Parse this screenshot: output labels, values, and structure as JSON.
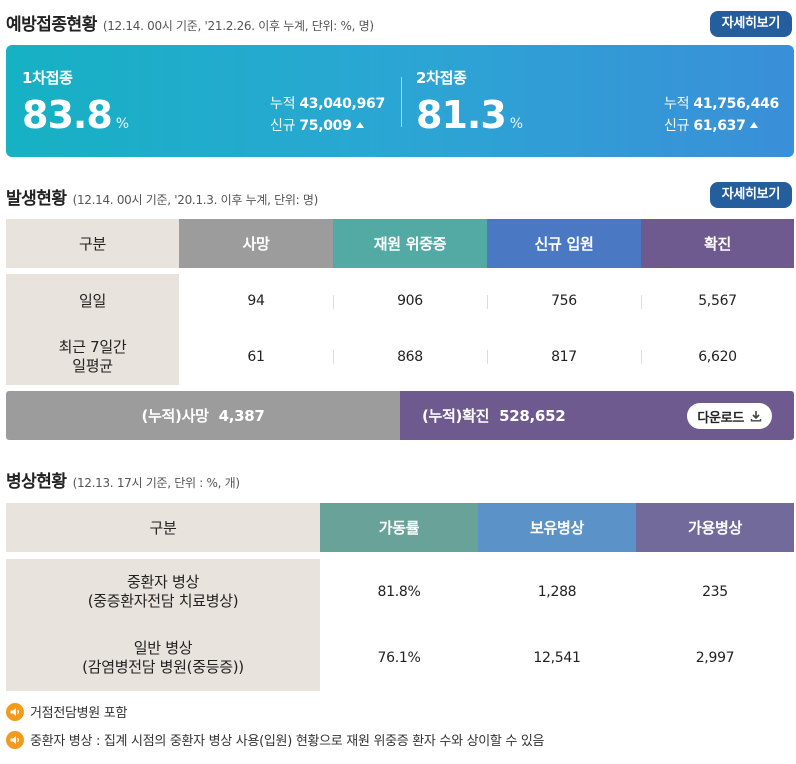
{
  "vaccination": {
    "title": "예방접종현황",
    "note": "(12.14. 00시 기준, '21.2.26. 이후 누계, 단위: %, 명)",
    "detail_label": "자세히보기",
    "dose1": {
      "label": "1차접종",
      "pct": "83.8",
      "unit": "%",
      "cum_label": "누적",
      "cum_value": "43,040,967",
      "new_label": "신규",
      "new_value": "75,009"
    },
    "dose2": {
      "label": "2차접종",
      "pct": "81.3",
      "unit": "%",
      "cum_label": "누적",
      "cum_value": "41,756,446",
      "new_label": "신규",
      "new_value": "61,637"
    }
  },
  "outbreak": {
    "title": "발생현황",
    "note": "(12.14. 00시 기준, '20.1.3. 이후 누계, 단위: 명)",
    "detail_label": "자세히보기",
    "headers": [
      "구분",
      "사망",
      "재원 위중증",
      "신규 입원",
      "확진"
    ],
    "header_colors": [
      "#e8e3dc",
      "#9c9c9c",
      "#53a9a3",
      "#4a78c2",
      "#6e5a8e"
    ],
    "rows": [
      {
        "label": "일일",
        "values": [
          "94",
          "906",
          "756",
          "5,567"
        ]
      },
      {
        "label": "최근 7일간\n일평균",
        "values": [
          "61",
          "868",
          "817",
          "6,620"
        ]
      }
    ],
    "cum_death_label": "(누적)사망",
    "cum_death_value": "4,387",
    "cum_confirmed_label": "(누적)확진",
    "cum_confirmed_value": "528,652",
    "download_label": "다운로드"
  },
  "beds": {
    "title": "병상현황",
    "note": "(12.13. 17시 기준, 단위 : %, 개)",
    "headers": [
      "구분",
      "가동률",
      "보유병상",
      "가용병상"
    ],
    "header_colors": [
      "#e8e3dc",
      "#68a298",
      "#5b93c9",
      "#716a9a"
    ],
    "rows": [
      {
        "label": "중환자 병상\n(중증환자전담 치료병상)",
        "values": [
          "81.8%",
          "1,288",
          "235"
        ]
      },
      {
        "label": "일반 병상\n(감염병전담 병원(중등증))",
        "values": [
          "76.1%",
          "12,541",
          "2,997"
        ]
      }
    ]
  },
  "footnotes": [
    "거점전담병원 포함",
    "중환자 병상 : 집계 시점의 중환자 병상 사용(입원) 현황으로 재원 위중증 환자 수와 상이할 수 있음"
  ]
}
